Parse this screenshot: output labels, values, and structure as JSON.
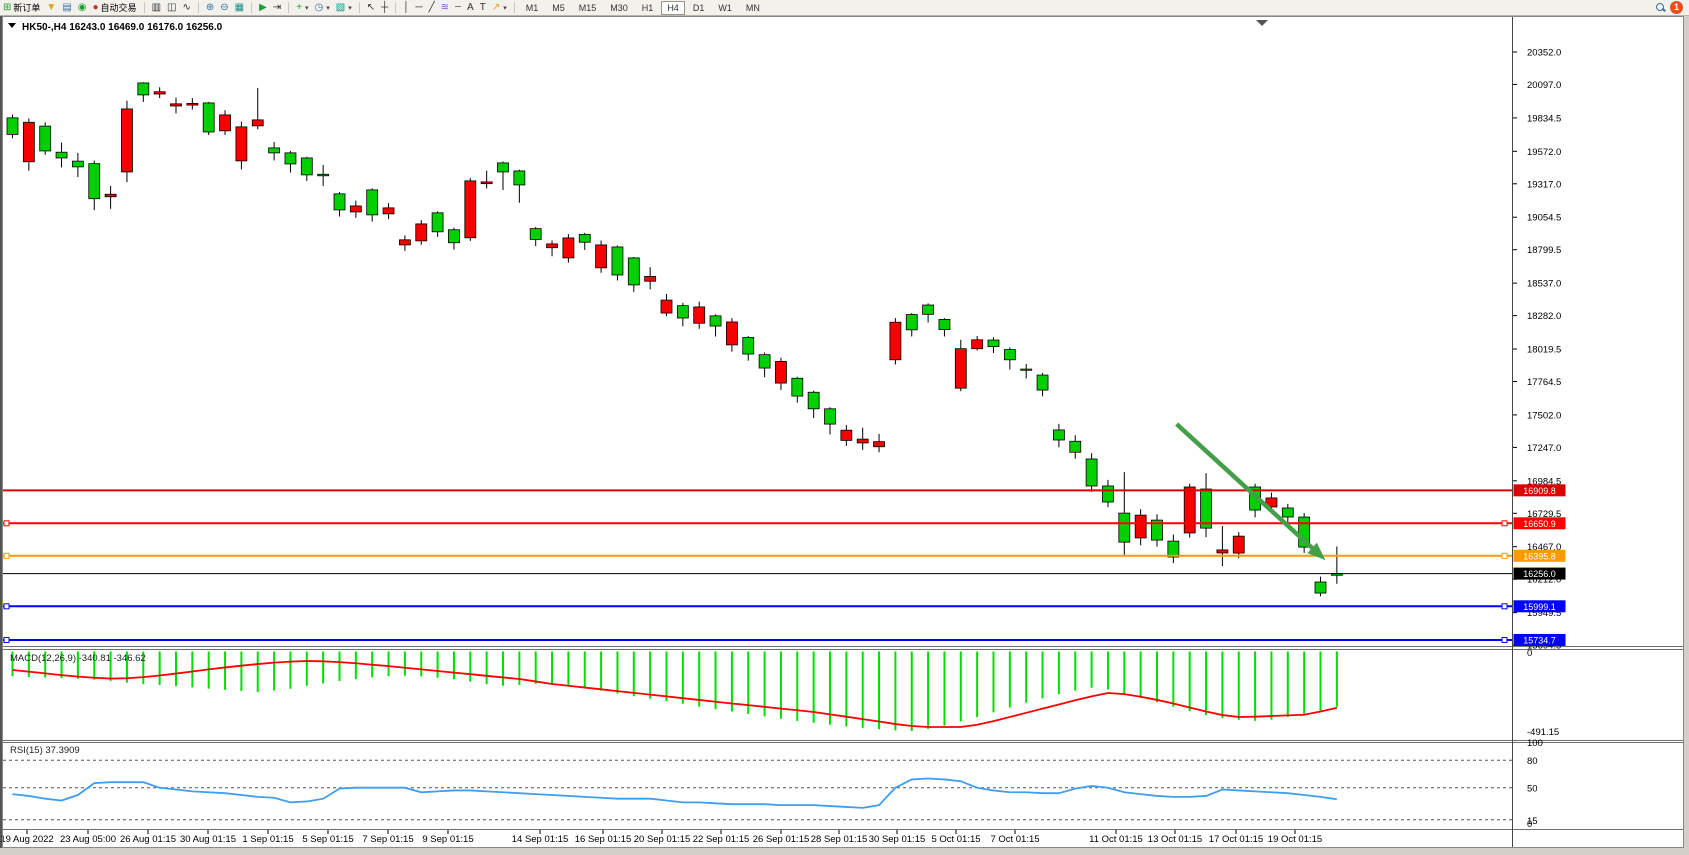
{
  "toolbar": {
    "new_order_label": "新订单",
    "autotrading_label": "自动交易",
    "badge_count": "1",
    "timeframes": [
      "M1",
      "M5",
      "M15",
      "M30",
      "H1",
      "H4",
      "D1",
      "W1",
      "MN"
    ],
    "active_timeframe": "H4",
    "icons": {
      "new_order": "⊞",
      "funnel": "▼",
      "publish": "▤",
      "signal": "◉",
      "autotrading": "●",
      "bar_chart": "▥",
      "candlestick": "◫",
      "line_chart": "∿",
      "zoom_in": "⊕",
      "zoom_out": "⊖",
      "tile_windows": "▦",
      "auto_scroll": "▶",
      "chart_shift": "⇥",
      "indicators": "+",
      "periods": "◷",
      "templates": "▧",
      "caret": "▾",
      "cursor": "↖",
      "crosshair": "┼",
      "vline": "│",
      "hline": "─",
      "trendline": "╱",
      "elliott": "≋",
      "fibo": "┄",
      "text": "A",
      "label": "T",
      "arrows": "↗"
    }
  },
  "chart": {
    "title": "HK50-,H4 16243.0 16469.0 16176.0 16256.0",
    "symbol": "HK50-",
    "timeframe": "H4"
  },
  "chart_data": {
    "type": "candlestick",
    "title": "HK50- H4 chart",
    "ohlc_current": {
      "open": 16243.0,
      "high": 16469.0,
      "low": 16176.0,
      "close": 16256.0
    },
    "price_axis_ticks": [
      20352.0,
      20097.0,
      19834.5,
      19572.0,
      19317.0,
      19054.5,
      18799.5,
      18537.0,
      18282.0,
      18019.5,
      17764.5,
      17502.0,
      17247.0,
      16984.5,
      16729.5,
      16467.0,
      16212.0,
      15949.5,
      15694.5
    ],
    "time_labels": [
      [
        "19 Aug 2022",
        27
      ],
      [
        "23 Aug 05:00",
        88
      ],
      [
        "26 Aug 01:15",
        148
      ],
      [
        "30 Aug 01:15",
        208
      ],
      [
        "1 Sep 01:15",
        268
      ],
      [
        "5 Sep 01:15",
        328
      ],
      [
        "7 Sep 01:15",
        388
      ],
      [
        "9 Sep 01:15",
        448
      ],
      [
        "14 Sep 01:15",
        540
      ],
      [
        "16 Sep 01:15",
        603
      ],
      [
        "20 Sep 01:15",
        662
      ],
      [
        "22 Sep 01:15",
        721
      ],
      [
        "26 Sep 01:15",
        781
      ],
      [
        "28 Sep 01:15",
        839
      ],
      [
        "30 Sep 01:15",
        897
      ],
      [
        "5 Oct 01:15",
        956
      ],
      [
        "7 Oct 01:15",
        1015
      ],
      [
        "11 Oct 01:15",
        1116
      ],
      [
        "13 Oct 01:15",
        1175
      ],
      [
        "17 Oct 01:15",
        1236
      ],
      [
        "19 Oct 01:15",
        1295
      ]
    ],
    "candles": [
      [
        19705,
        19860,
        19675,
        19835
      ],
      [
        19800,
        19830,
        19420,
        19490
      ],
      [
        19575,
        19800,
        19545,
        19770
      ],
      [
        19520,
        19640,
        19445,
        19565
      ],
      [
        19450,
        19560,
        19370,
        19495
      ],
      [
        19200,
        19500,
        19110,
        19475
      ],
      [
        19235,
        19300,
        19120,
        19215
      ],
      [
        19905,
        19970,
        19330,
        19410
      ],
      [
        20015,
        20115,
        19960,
        20109
      ],
      [
        20040,
        20075,
        19990,
        20022
      ],
      [
        19945,
        19995,
        19870,
        19928
      ],
      [
        19948,
        19990,
        19900,
        19935
      ],
      [
        19724,
        19960,
        19700,
        19952
      ],
      [
        19858,
        19895,
        19700,
        19733
      ],
      [
        19764,
        19805,
        19430,
        19497
      ],
      [
        19819,
        20070,
        19745,
        19772
      ],
      [
        19560,
        19645,
        19500,
        19599
      ],
      [
        19473,
        19575,
        19405,
        19560
      ],
      [
        19387,
        19530,
        19340,
        19520
      ],
      [
        19380,
        19465,
        19300,
        19392
      ],
      [
        19112,
        19252,
        19060,
        19238
      ],
      [
        19143,
        19185,
        19050,
        19096
      ],
      [
        19073,
        19282,
        19020,
        19269
      ],
      [
        19128,
        19165,
        19040,
        19081
      ],
      [
        18877,
        18912,
        18790,
        18837
      ],
      [
        19002,
        19032,
        18838,
        18869
      ],
      [
        18940,
        19102,
        18900,
        19089
      ],
      [
        18854,
        18972,
        18800,
        18956
      ],
      [
        19340,
        19362,
        18868,
        18893
      ],
      [
        19332,
        19420,
        19280,
        19318
      ],
      [
        19410,
        19492,
        19268,
        19481
      ],
      [
        19308,
        19428,
        19168,
        19418
      ],
      [
        18880,
        18978,
        18828,
        18965
      ],
      [
        18845,
        18872,
        18748,
        18815
      ],
      [
        18892,
        18922,
        18698,
        18735
      ],
      [
        18858,
        18932,
        18798,
        18920
      ],
      [
        18837,
        18872,
        18618,
        18657
      ],
      [
        18601,
        18832,
        18558,
        18821
      ],
      [
        18523,
        18742,
        18468,
        18735
      ],
      [
        18590,
        18662,
        18488,
        18552
      ],
      [
        18404,
        18452,
        18278,
        18302
      ],
      [
        18263,
        18382,
        18198,
        18360
      ],
      [
        18350,
        18392,
        18178,
        18222
      ],
      [
        18200,
        18292,
        18118,
        18280
      ],
      [
        18232,
        18262,
        17998,
        18052
      ],
      [
        17980,
        18122,
        17928,
        18110
      ],
      [
        17870,
        17992,
        17798,
        17975
      ],
      [
        17922,
        17952,
        17698,
        17752
      ],
      [
        17650,
        17802,
        17598,
        17790
      ],
      [
        17550,
        17692,
        17478,
        17680
      ],
      [
        17430,
        17562,
        17348,
        17550
      ],
      [
        17382,
        17422,
        17258,
        17302
      ],
      [
        17312,
        17402,
        17228,
        17282
      ],
      [
        17292,
        17352,
        17208,
        17252
      ],
      [
        18230,
        18262,
        17898,
        17935
      ],
      [
        18170,
        18302,
        18118,
        18290
      ],
      [
        18292,
        18378,
        18228,
        18365
      ],
      [
        18172,
        18262,
        18118,
        18252
      ],
      [
        18022,
        18092,
        17688,
        17712
      ],
      [
        18092,
        18122,
        18008,
        18022
      ],
      [
        18038,
        18112,
        17988,
        18090
      ],
      [
        17935,
        18032,
        17858,
        18015
      ],
      [
        17858,
        17902,
        17788,
        17862
      ],
      [
        17697,
        17832,
        17648,
        17815
      ],
      [
        17305,
        17432,
        17248,
        17384
      ],
      [
        17209,
        17342,
        17158,
        17295
      ],
      [
        16944,
        17202,
        16898,
        17156
      ],
      [
        16818,
        16992,
        16778,
        16944
      ],
      [
        16503,
        17053,
        16398,
        16731
      ],
      [
        16715,
        16762,
        16478,
        16536
      ],
      [
        16519,
        16722,
        16468,
        16676
      ],
      [
        16386,
        16562,
        16338,
        16511
      ],
      [
        16936,
        16962,
        16538,
        16575
      ],
      [
        16613,
        17045,
        16542,
        16920
      ],
      [
        16442,
        16629,
        16315,
        16418
      ],
      [
        16550,
        16582,
        16378,
        16417
      ],
      [
        16755,
        16962,
        16698,
        16936
      ],
      [
        16850,
        16892,
        16738,
        16779
      ],
      [
        16700,
        16802,
        16658,
        16771
      ],
      [
        16464,
        16732,
        16418,
        16700
      ],
      [
        16103,
        16232,
        16078,
        16190
      ],
      [
        16243,
        16469,
        16176,
        16256
      ]
    ],
    "hlines": [
      {
        "price": 16909.8,
        "label": "16909.8",
        "color": "#dd0000",
        "width": 2,
        "handles": false
      },
      {
        "price": 16650.9,
        "label": "16650.9",
        "color": "#ff0000",
        "width": 2,
        "handles": true
      },
      {
        "price": 16395.8,
        "label": "16395.8",
        "color": "#ff9900",
        "width": 2,
        "handles": true
      },
      {
        "price": 16256.0,
        "label": "16256.0",
        "color": "#000000",
        "width": 1,
        "handles": false
      },
      {
        "price": 15999.1,
        "label": "15999.1",
        "color": "#0000ff",
        "width": 2,
        "handles": true
      },
      {
        "price": 15734.7,
        "label": "15734.7",
        "color": "#0000ff",
        "width": 2,
        "handles": true
      }
    ],
    "trend_arrow": {
      "i1": 71.2,
      "p1": 17430,
      "i2": 80.3,
      "p2": 16362,
      "color": "#44a048"
    },
    "colors": {
      "up": "#00cf00",
      "down": "#f80000",
      "wick": "#000000",
      "macd_hist": "#00e000",
      "macd_signal": "#ff0000",
      "rsi": "#3e9ef0"
    },
    "indicators": {
      "macd": {
        "display": "MACD(12,26,9) -340.81 -346.62",
        "name": "MACD",
        "params": "12,26,9",
        "main_value": -340.81,
        "signal_value": -346.62,
        "axis_labels": [
          "0",
          "-491.15"
        ],
        "axis_min": -491.15,
        "histogram": [
          -150,
          -155,
          -158,
          -162,
          -166,
          -172,
          -180,
          -190,
          -200,
          -205,
          -212,
          -220,
          -228,
          -235,
          -242,
          -248,
          -240,
          -228,
          -210,
          -195,
          -180,
          -168,
          -158,
          -150,
          -148,
          -152,
          -160,
          -170,
          -185,
          -200,
          -210,
          -205,
          -198,
          -202,
          -212,
          -225,
          -240,
          -258,
          -275,
          -290,
          -305,
          -322,
          -340,
          -355,
          -370,
          -385,
          -400,
          -415,
          -428,
          -440,
          -452,
          -462,
          -472,
          -480,
          -488,
          -491,
          -478,
          -458,
          -432,
          -405,
          -375,
          -345,
          -315,
          -288,
          -262,
          -240,
          -222,
          -232,
          -258,
          -285,
          -312,
          -340,
          -368,
          -392,
          -410,
          -422,
          -428,
          -420,
          -405,
          -388,
          -365,
          -341
        ],
        "signal": [
          -112,
          -122,
          -133,
          -144,
          -153,
          -160,
          -165,
          -163,
          -156,
          -146,
          -134,
          -121,
          -108,
          -96,
          -85,
          -75,
          -66,
          -60,
          -56,
          -58,
          -63,
          -70,
          -79,
          -88,
          -98,
          -108,
          -118,
          -128,
          -138,
          -148,
          -158,
          -168,
          -183,
          -199,
          -210,
          -221,
          -232,
          -243,
          -254,
          -265,
          -276,
          -287,
          -298,
          -309,
          -320,
          -330,
          -341,
          -352,
          -362,
          -373,
          -388,
          -402,
          -417,
          -432,
          -448,
          -460,
          -466,
          -466,
          -466,
          -452,
          -430,
          -404,
          -378,
          -352,
          -326,
          -300,
          -276,
          -255,
          -262,
          -278,
          -298,
          -320,
          -345,
          -370,
          -392,
          -404,
          -402,
          -398,
          -394,
          -390,
          -370,
          -347
        ]
      },
      "rsi": {
        "display": "RSI(15) 37.3909",
        "name": "RSI",
        "params": "15",
        "value": 37.3909,
        "axis_labels": [
          "100",
          "80",
          "50",
          "15",
          "0"
        ],
        "levels": [
          80,
          50,
          15
        ],
        "values": [
          43,
          41,
          38,
          36,
          42,
          55,
          56,
          56,
          56,
          50,
          48,
          46,
          45,
          44,
          42,
          40,
          39,
          34,
          35,
          38,
          49,
          50,
          50,
          50,
          50,
          45,
          46,
          47,
          47,
          46,
          45,
          44,
          43,
          42,
          41,
          40,
          39,
          38,
          38,
          38,
          36,
          34,
          34,
          33,
          32,
          32,
          32,
          31,
          31,
          31,
          30,
          29,
          28,
          31,
          50,
          59,
          60,
          59,
          57,
          50,
          47,
          45,
          45,
          44,
          44,
          49,
          52,
          50,
          45,
          43,
          41,
          40,
          40,
          41,
          48,
          47,
          46,
          45,
          44,
          42,
          40,
          37.39
        ]
      }
    }
  }
}
